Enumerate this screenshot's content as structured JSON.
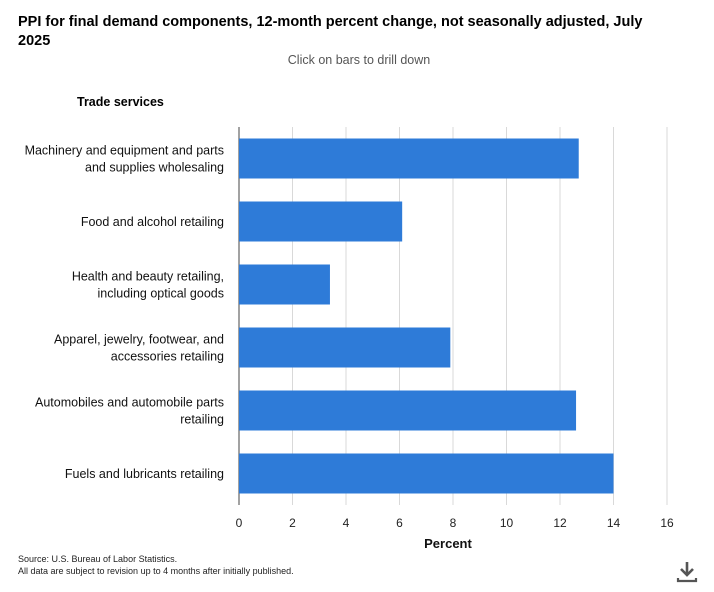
{
  "page": {
    "title": "PPI for final demand components, 12-month percent change, not seasonally adjusted, July 2025",
    "subtitle": "Click on bars to drill down",
    "group_label": "Trade services",
    "source_line1": "Source: U.S. Bureau of Labor Statistics.",
    "source_line2": "All data are subject to revision up to 4 months after initially published.",
    "download_icon": "download-icon"
  },
  "colors": {
    "bar": "#2e7bd8",
    "grid": "#d9d9d9",
    "axis": "#444444"
  },
  "chart_data": {
    "type": "bar",
    "orientation": "horizontal",
    "title": "PPI for final demand components, 12-month percent change, not seasonally adjusted, July 2025",
    "xlabel": "Percent",
    "ylabel": "Trade services",
    "xlim": [
      0,
      16
    ],
    "xticks": [
      0,
      2,
      4,
      6,
      8,
      10,
      12,
      14,
      16
    ],
    "grid": true,
    "categories": [
      [
        "Machinery and equipment and parts",
        "and supplies wholesaling"
      ],
      [
        "Food and alcohol retailing"
      ],
      [
        "Health and beauty retailing,",
        "including optical goods"
      ],
      [
        "Apparel, jewelry, footwear, and",
        "accessories retailing"
      ],
      [
        "Automobiles and automobile parts",
        "retailing"
      ],
      [
        "Fuels and lubricants retailing"
      ]
    ],
    "values": [
      12.7,
      6.1,
      3.4,
      7.9,
      12.6,
      14.0
    ]
  }
}
